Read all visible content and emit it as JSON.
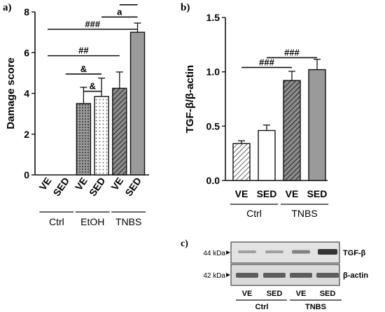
{
  "panels": {
    "a": {
      "letter": "a)"
    },
    "b": {
      "letter": "b)"
    },
    "c": {
      "letter": "c)",
      "bands": [
        {
          "marker": "44 kDa",
          "protein": "TGF-β"
        },
        {
          "marker": "42 kDa",
          "protein": "β-actin"
        }
      ],
      "lanes": [
        "VE",
        "SED",
        "VE",
        "SED"
      ],
      "groups": [
        "Ctrl",
        "TNBS"
      ]
    }
  },
  "chart_data": [
    {
      "type": "bar",
      "panel": "a",
      "ylabel": "Damage score",
      "ylim": [
        0,
        8
      ],
      "yticks": [
        0,
        2,
        4,
        6,
        8
      ],
      "categories": [
        "VE",
        "SED",
        "VE",
        "SED",
        "VE",
        "SED"
      ],
      "groups": [
        {
          "label": "Ctrl",
          "members": [
            0,
            1
          ]
        },
        {
          "label": "EtOH",
          "members": [
            2,
            3
          ]
        },
        {
          "label": "TNBS",
          "members": [
            4,
            5
          ]
        }
      ],
      "values": [
        0,
        0,
        3.5,
        3.85,
        4.25,
        7.0
      ],
      "errors": [
        0,
        0,
        0.8,
        0.9,
        0.8,
        0.45
      ],
      "fills": [
        "none",
        "none",
        "dots-dense",
        "dots-sparse",
        "hatch",
        "solid-grey"
      ],
      "significance": [
        {
          "from": 2,
          "to": 3,
          "label": "&",
          "y": 4.1
        },
        {
          "from": 1,
          "to": 3,
          "label": "&",
          "y": 4.95
        },
        {
          "from": 0,
          "to": 4,
          "label": "##",
          "y": 5.85
        },
        {
          "from": 0,
          "to": 5,
          "label": "###",
          "y": 7.15
        },
        {
          "from": 3,
          "to": 5,
          "label": "a",
          "y": 7.75
        },
        {
          "from": 4,
          "to": 5,
          "label": "*",
          "y": 8.35
        }
      ]
    },
    {
      "type": "bar",
      "panel": "b",
      "ylabel": "TGF-β/β-actin",
      "ylim": [
        0,
        1.5
      ],
      "yticks": [
        "0.0",
        "0.5",
        "1.0",
        "1.5"
      ],
      "categories": [
        "VE",
        "SED",
        "VE",
        "SED"
      ],
      "groups": [
        {
          "label": "Ctrl",
          "members": [
            0,
            1
          ]
        },
        {
          "label": "TNBS",
          "members": [
            2,
            3
          ]
        }
      ],
      "values": [
        0.34,
        0.46,
        0.92,
        1.02
      ],
      "errors": [
        0.025,
        0.05,
        0.085,
        0.095
      ],
      "fills": [
        "hatch-light",
        "white",
        "hatch",
        "solid-grey"
      ],
      "significance": [
        {
          "from": 0,
          "to": 2,
          "label": "###",
          "y": 1.04
        },
        {
          "from": 1,
          "to": 3,
          "label": "###",
          "y": 1.13
        }
      ]
    }
  ]
}
